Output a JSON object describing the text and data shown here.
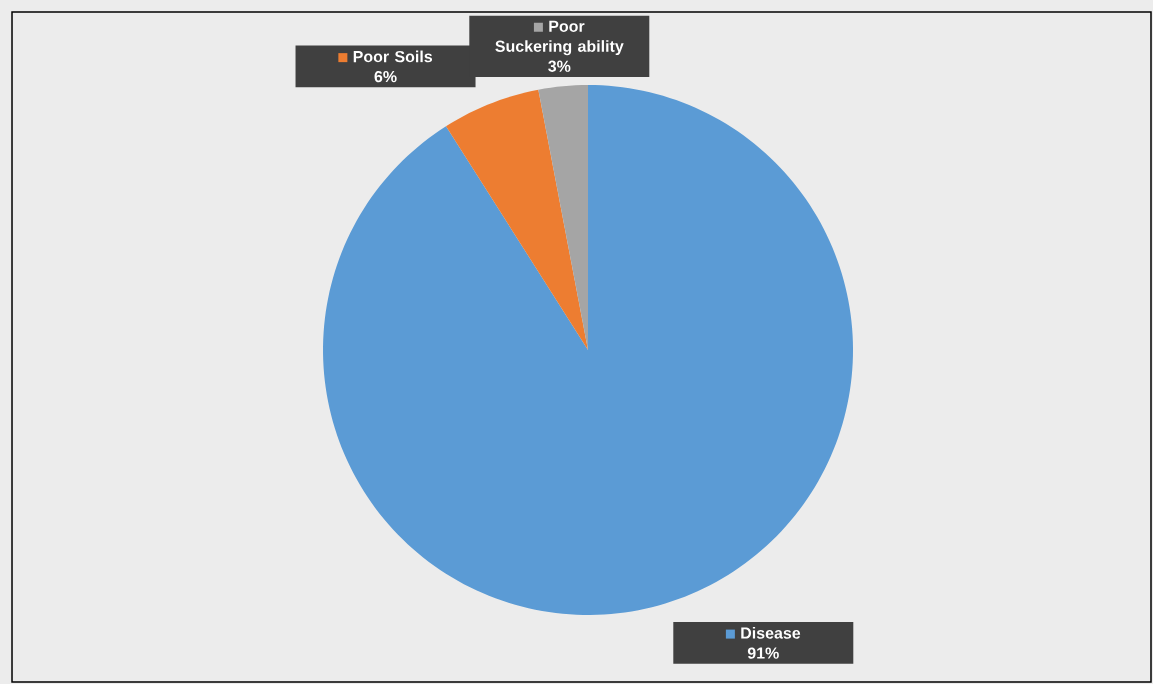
{
  "chart_data": {
    "type": "pie",
    "categories": [
      "Disease",
      "Poor Soils",
      "Poor Suckering ability"
    ],
    "values": [
      91,
      6,
      3
    ],
    "colors": [
      "#5b9bd5",
      "#ed7d31",
      "#a5a5a5"
    ],
    "value_labels": [
      "91%",
      "6%",
      "3%"
    ],
    "legend": "top"
  }
}
